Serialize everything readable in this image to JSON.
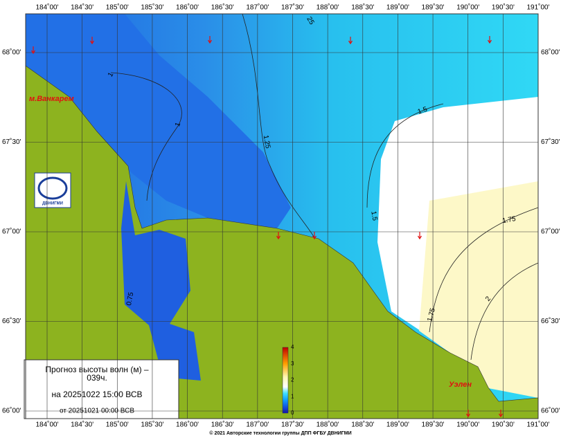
{
  "longitude_labels": [
    "184˚00'",
    "184˚30'",
    "185˚00'",
    "185˚30'",
    "186˚00'",
    "186˚30'",
    "187˚00'",
    "187˚30'",
    "188˚00'",
    "188˚30'",
    "189˚00'",
    "189˚30'",
    "190˚00'",
    "190˚30'",
    "191˚00'"
  ],
  "latitude_labels": [
    "68˚00'",
    "67˚30'",
    "67˚00'",
    "66˚30'",
    "66˚00'"
  ],
  "places": [
    "м.Ванкарем",
    "Уэлен"
  ],
  "contour_labels": [
    "1",
    "1",
    "1.25",
    "25",
    "1.5",
    "1.5",
    "1.75",
    "1.75",
    "2",
    "0.75"
  ],
  "colorbar_ticks": [
    0,
    1,
    2,
    3,
    4
  ],
  "info": {
    "title": "Прогноз высоты волн (м) –",
    "lead": "039ч.",
    "valid": "на 20251022 15:00 ВСВ",
    "base": "от 20251021 00:00 ВСВ"
  },
  "logo": "ДВНИГМИ",
  "copyright": "© 2021 Авторские технологии группы ДПП ФГБУ ДВНИГМИ"
}
